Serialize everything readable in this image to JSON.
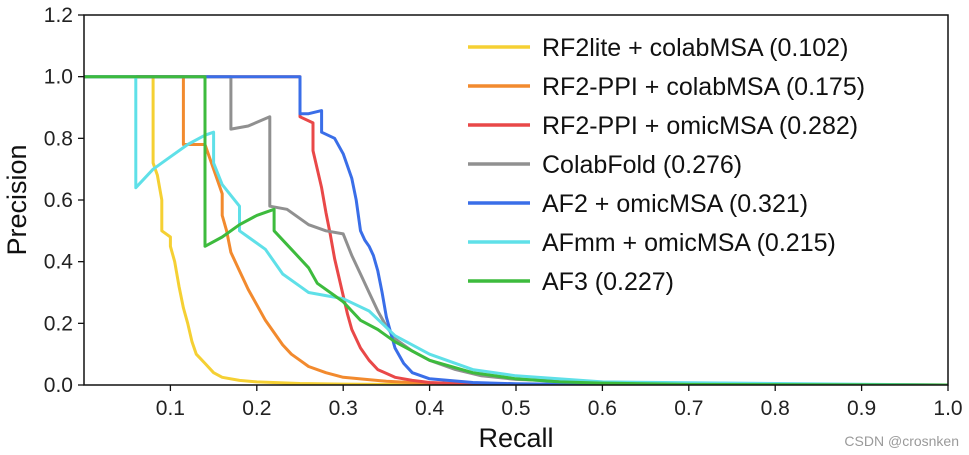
{
  "chart_data": {
    "type": "line",
    "title": "",
    "xlabel": "Recall",
    "ylabel": "Precision",
    "xlim": [
      0.0,
      1.0
    ],
    "ylim": [
      0.0,
      1.2
    ],
    "xticks": [
      0.1,
      0.2,
      0.3,
      0.4,
      0.5,
      0.6,
      0.7,
      0.8,
      0.9,
      1.0
    ],
    "xtick_labels": [
      "0.1",
      "0.2",
      "0.3",
      "0.4",
      "0.5",
      "0.6",
      "0.7",
      "0.8",
      "0.9",
      "1.0"
    ],
    "yticks": [
      0.0,
      0.2,
      0.4,
      0.6,
      0.8,
      1.0,
      1.2
    ],
    "ytick_labels": [
      "0.0",
      "0.2",
      "0.4",
      "0.6",
      "0.8",
      "1.0",
      "1.2"
    ],
    "legend_position": "top-right",
    "series": [
      {
        "name": "RF2lite + colabMSA (0.102)",
        "color": "#f5d033",
        "x": [
          0.0,
          0.08,
          0.08,
          0.085,
          0.09,
          0.09,
          0.1,
          0.1,
          0.105,
          0.11,
          0.115,
          0.12,
          0.125,
          0.13,
          0.14,
          0.15,
          0.16,
          0.18,
          0.2,
          0.25,
          0.3,
          0.4,
          1.0
        ],
        "y": [
          1.0,
          1.0,
          0.72,
          0.68,
          0.6,
          0.5,
          0.48,
          0.45,
          0.4,
          0.32,
          0.25,
          0.2,
          0.14,
          0.1,
          0.07,
          0.04,
          0.025,
          0.015,
          0.01,
          0.005,
          0.003,
          0.001,
          0.0
        ]
      },
      {
        "name": "RF2-PPI + colabMSA (0.175)",
        "color": "#f28a2e",
        "x": [
          0.0,
          0.115,
          0.115,
          0.14,
          0.16,
          0.16,
          0.165,
          0.17,
          0.18,
          0.19,
          0.2,
          0.21,
          0.22,
          0.23,
          0.24,
          0.25,
          0.26,
          0.28,
          0.3,
          0.35,
          0.4,
          0.5,
          1.0
        ],
        "y": [
          1.0,
          1.0,
          0.78,
          0.78,
          0.62,
          0.55,
          0.5,
          0.43,
          0.37,
          0.31,
          0.26,
          0.21,
          0.17,
          0.13,
          0.1,
          0.08,
          0.06,
          0.04,
          0.025,
          0.012,
          0.005,
          0.002,
          0.0
        ]
      },
      {
        "name": "RF2-PPI + omicMSA (0.282)",
        "color": "#e94848",
        "x": [
          0.0,
          0.25,
          0.25,
          0.265,
          0.265,
          0.27,
          0.275,
          0.28,
          0.285,
          0.29,
          0.295,
          0.3,
          0.305,
          0.31,
          0.32,
          0.33,
          0.34,
          0.36,
          0.38,
          0.4,
          0.45,
          0.5,
          0.6,
          1.0
        ],
        "y": [
          1.0,
          1.0,
          0.87,
          0.85,
          0.76,
          0.7,
          0.64,
          0.56,
          0.49,
          0.41,
          0.35,
          0.29,
          0.23,
          0.18,
          0.12,
          0.08,
          0.05,
          0.025,
          0.015,
          0.008,
          0.003,
          0.002,
          0.001,
          0.0
        ]
      },
      {
        "name": "ColabFold (0.276)",
        "color": "#909090",
        "x": [
          0.0,
          0.17,
          0.17,
          0.19,
          0.215,
          0.215,
          0.235,
          0.26,
          0.28,
          0.3,
          0.31,
          0.32,
          0.33,
          0.34,
          0.35,
          0.36,
          0.38,
          0.4,
          0.43,
          0.46,
          0.5,
          0.6,
          0.7,
          1.0
        ],
        "y": [
          1.0,
          1.0,
          0.83,
          0.84,
          0.87,
          0.58,
          0.57,
          0.52,
          0.5,
          0.49,
          0.42,
          0.36,
          0.3,
          0.24,
          0.19,
          0.15,
          0.11,
          0.08,
          0.05,
          0.03,
          0.018,
          0.008,
          0.003,
          0.0
        ]
      },
      {
        "name": "AF2 + omicMSA (0.321)",
        "color": "#3a6ee8",
        "x": [
          0.0,
          0.25,
          0.25,
          0.26,
          0.275,
          0.275,
          0.29,
          0.3,
          0.31,
          0.315,
          0.32,
          0.325,
          0.33,
          0.335,
          0.34,
          0.345,
          0.35,
          0.36,
          0.37,
          0.38,
          0.4,
          0.45,
          0.5,
          0.6,
          1.0
        ],
        "y": [
          1.0,
          1.0,
          0.88,
          0.88,
          0.89,
          0.82,
          0.8,
          0.75,
          0.67,
          0.6,
          0.5,
          0.47,
          0.45,
          0.42,
          0.37,
          0.3,
          0.22,
          0.12,
          0.07,
          0.04,
          0.02,
          0.008,
          0.004,
          0.001,
          0.0
        ]
      },
      {
        "name": "AFmm + omicMSA (0.215)",
        "color": "#5fe0e8",
        "x": [
          0.0,
          0.06,
          0.06,
          0.08,
          0.1,
          0.12,
          0.14,
          0.15,
          0.15,
          0.16,
          0.18,
          0.18,
          0.19,
          0.21,
          0.23,
          0.25,
          0.26,
          0.28,
          0.3,
          0.33,
          0.36,
          0.4,
          0.45,
          0.5,
          0.6,
          1.0
        ],
        "y": [
          1.0,
          1.0,
          0.64,
          0.7,
          0.74,
          0.78,
          0.81,
          0.82,
          0.72,
          0.65,
          0.58,
          0.5,
          0.48,
          0.44,
          0.36,
          0.32,
          0.3,
          0.29,
          0.28,
          0.24,
          0.16,
          0.1,
          0.05,
          0.03,
          0.01,
          0.0
        ]
      },
      {
        "name": "AF3 (0.227)",
        "color": "#3dbb3d",
        "x": [
          0.0,
          0.14,
          0.14,
          0.16,
          0.18,
          0.2,
          0.22,
          0.22,
          0.24,
          0.26,
          0.27,
          0.29,
          0.3,
          0.31,
          0.32,
          0.34,
          0.36,
          0.38,
          0.4,
          0.45,
          0.5,
          0.55,
          0.6,
          0.7,
          1.0
        ],
        "y": [
          1.0,
          1.0,
          0.45,
          0.48,
          0.52,
          0.55,
          0.57,
          0.5,
          0.44,
          0.38,
          0.33,
          0.29,
          0.27,
          0.24,
          0.21,
          0.18,
          0.14,
          0.11,
          0.08,
          0.04,
          0.02,
          0.01,
          0.006,
          0.002,
          0.0
        ]
      }
    ]
  },
  "watermark": "CSDN @crosnken"
}
